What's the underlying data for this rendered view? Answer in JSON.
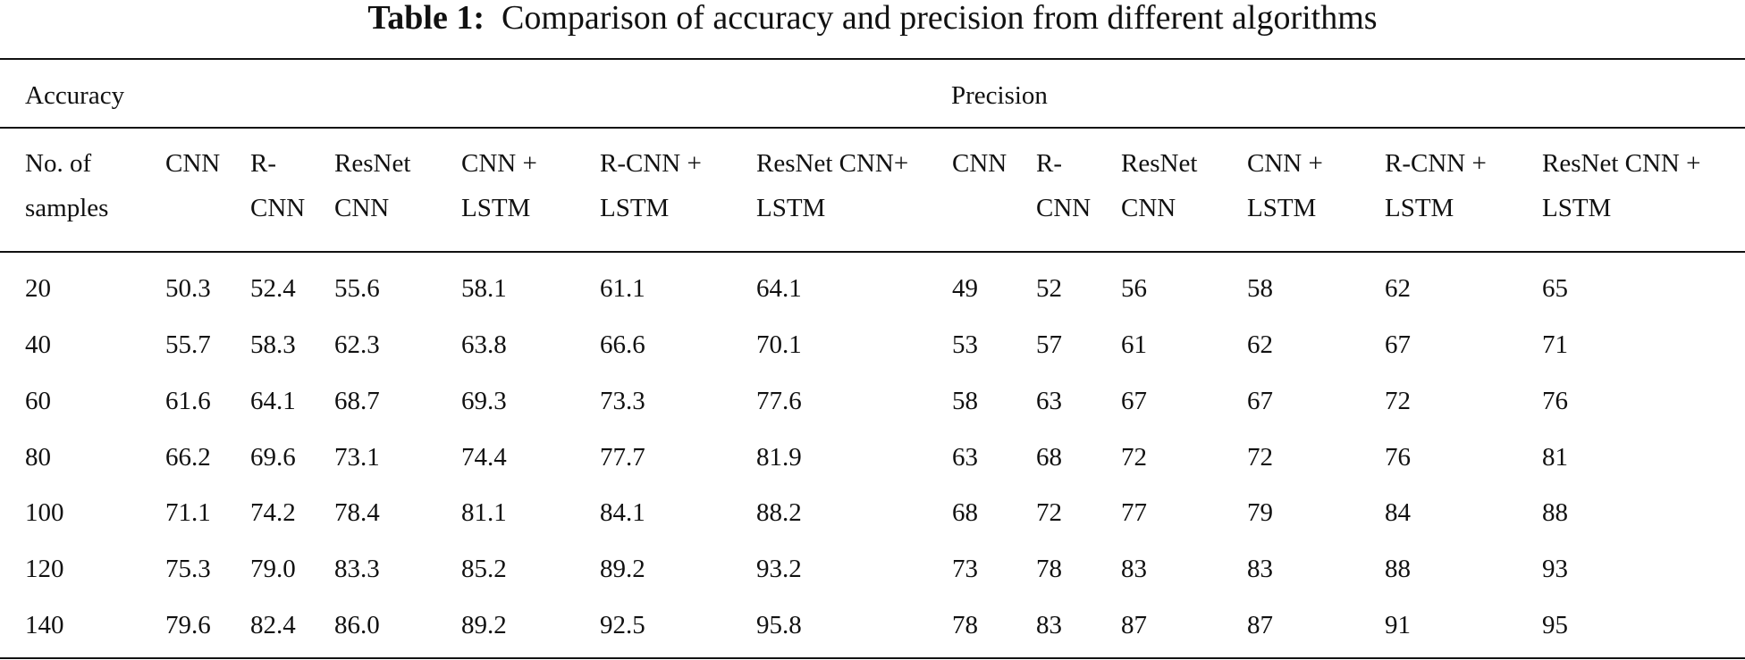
{
  "caption": {
    "label": "Table 1:",
    "text": "Comparison of accuracy and precision from different algorithms"
  },
  "groups": {
    "accuracy": "Accuracy",
    "precision": "Precision"
  },
  "columns": [
    [
      "No. of",
      "samples"
    ],
    [
      "CNN",
      ""
    ],
    [
      "R-",
      "CNN"
    ],
    [
      "ResNet",
      "CNN"
    ],
    [
      "CNN +",
      "LSTM"
    ],
    [
      "R-CNN +",
      "LSTM"
    ],
    [
      "ResNet CNN+",
      "LSTM"
    ],
    [
      "CNN",
      ""
    ],
    [
      "R-",
      "CNN"
    ],
    [
      "ResNet",
      "CNN"
    ],
    [
      "CNN +",
      "LSTM"
    ],
    [
      "R-CNN +",
      "LSTM"
    ],
    [
      "ResNet CNN +",
      "LSTM"
    ]
  ],
  "rows": [
    [
      "20",
      "50.3",
      "52.4",
      "55.6",
      "58.1",
      "61.1",
      "64.1",
      "49",
      "52",
      "56",
      "58",
      "62",
      "65"
    ],
    [
      "40",
      "55.7",
      "58.3",
      "62.3",
      "63.8",
      "66.6",
      "70.1",
      "53",
      "57",
      "61",
      "62",
      "67",
      "71"
    ],
    [
      "60",
      "61.6",
      "64.1",
      "68.7",
      "69.3",
      "73.3",
      "77.6",
      "58",
      "63",
      "67",
      "67",
      "72",
      "76"
    ],
    [
      "80",
      "66.2",
      "69.6",
      "73.1",
      "74.4",
      "77.7",
      "81.9",
      "63",
      "68",
      "72",
      "72",
      "76",
      "81"
    ],
    [
      "100",
      "71.1",
      "74.2",
      "78.4",
      "81.1",
      "84.1",
      "88.2",
      "68",
      "72",
      "77",
      "79",
      "84",
      "88"
    ],
    [
      "120",
      "75.3",
      "79.0",
      "83.3",
      "85.2",
      "89.2",
      "93.2",
      "73",
      "78",
      "83",
      "83",
      "88",
      "93"
    ],
    [
      "140",
      "79.6",
      "82.4",
      "86.0",
      "89.2",
      "92.5",
      "95.8",
      "78",
      "83",
      "87",
      "87",
      "91",
      "95"
    ]
  ]
}
